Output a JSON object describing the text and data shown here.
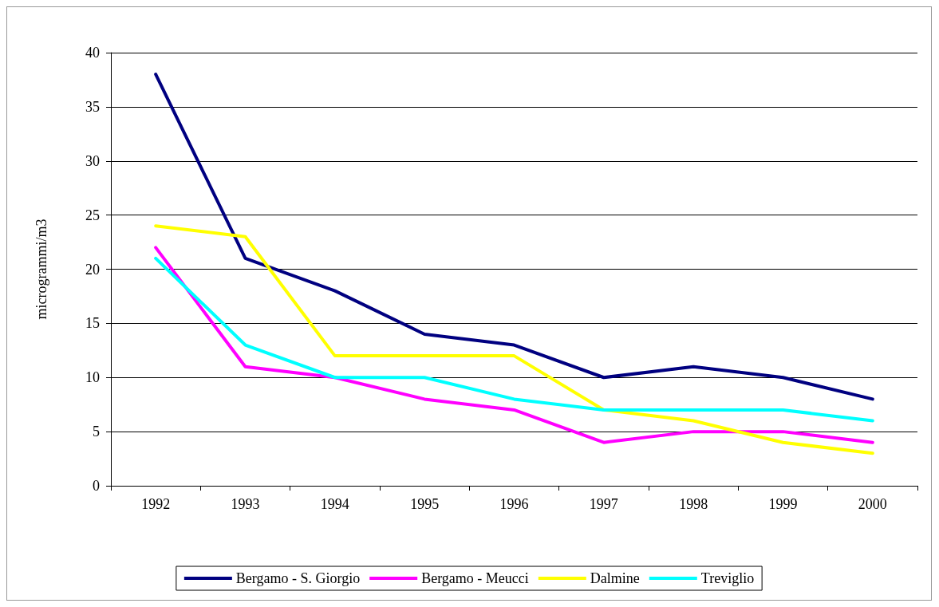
{
  "chart_data": {
    "type": "line",
    "ylabel": "microgrammi/m3",
    "categories": [
      "1992",
      "1993",
      "1994",
      "1995",
      "1996",
      "1997",
      "1998",
      "1999",
      "2000"
    ],
    "series": [
      {
        "name": "Bergamo - S. Giorgio",
        "color": "#000080",
        "values": [
          38,
          21,
          18,
          14,
          13,
          10,
          11,
          10,
          8
        ]
      },
      {
        "name": "Bergamo - Meucci",
        "color": "#ff00ff",
        "values": [
          22,
          11,
          10,
          8,
          7,
          4,
          5,
          5,
          4
        ]
      },
      {
        "name": "Dalmine",
        "color": "#ffff00",
        "values": [
          24,
          23,
          12,
          12,
          12,
          7,
          6,
          4,
          3
        ]
      },
      {
        "name": "Treviglio",
        "color": "#00ffff",
        "values": [
          21,
          13,
          10,
          10,
          8,
          7,
          7,
          7,
          6
        ]
      }
    ],
    "ylim": [
      0,
      40
    ],
    "yticks": [
      0,
      5,
      10,
      15,
      20,
      25,
      30,
      35,
      40
    ],
    "grid": "y",
    "legend": "bottom",
    "marker": "none",
    "line_style": "solid"
  }
}
